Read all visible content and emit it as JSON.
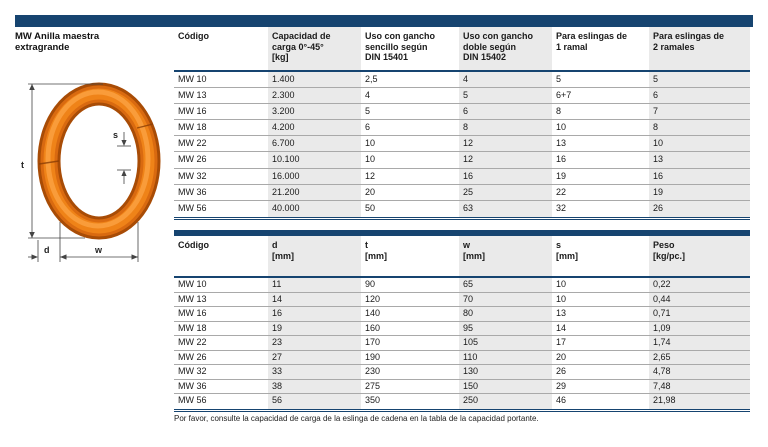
{
  "page": {
    "title_line1": "MW Anilla maestra",
    "title_line2": "extragrande",
    "footer_note": "Por favor, consulte la capacidad de carga de la eslinga de cadena en la tabla de la capacidad portante."
  },
  "colors": {
    "accent_navy": "#164470",
    "column_stripe": "#eaeaea",
    "ring_orange": "#e87a1e"
  },
  "diagram": {
    "labels": {
      "t": "t",
      "s": "s",
      "d": "d",
      "w": "w"
    }
  },
  "table1": {
    "headers": [
      {
        "l1": "Código"
      },
      {
        "l1": "Capacidad de",
        "l2": "carga 0°-45°",
        "l3": "[kg]"
      },
      {
        "l1": "Uso con gancho",
        "l2": "sencillo según",
        "l3": "DIN 15401"
      },
      {
        "l1": "Uso con gancho",
        "l2": "doble según",
        "l3": "DIN 15402"
      },
      {
        "l1": "Para eslingas de",
        "l2": "1 ramal"
      },
      {
        "l1": "Para eslingas de",
        "l2": "2 ramales"
      }
    ],
    "rows": [
      {
        "cells": [
          "MW 10",
          "1.400",
          "2,5",
          "4",
          "5",
          "5"
        ]
      },
      {
        "cells": [
          "MW 13",
          "2.300",
          "4",
          "5",
          "6+7",
          "6"
        ]
      },
      {
        "cells": [
          "MW 16",
          "3.200",
          "5",
          "6",
          "8",
          "7"
        ]
      },
      {
        "cells": [
          "MW 18",
          "4.200",
          "6",
          "8",
          "10",
          "8"
        ]
      },
      {
        "cells": [
          "MW 22",
          "6.700",
          "10",
          "12",
          "13",
          "10"
        ]
      },
      {
        "cells": [
          "MW 26",
          "10.100",
          "10",
          "12",
          "16",
          "13"
        ]
      },
      {
        "cells": [
          "MW 32",
          "16.000",
          "12",
          "16",
          "19",
          "16"
        ]
      },
      {
        "cells": [
          "MW 36",
          "21.200",
          "20",
          "25",
          "22",
          "19"
        ]
      },
      {
        "cells": [
          "MW 56",
          "40.000",
          "50",
          "63",
          "32",
          "26"
        ]
      }
    ]
  },
  "table2": {
    "headers": [
      {
        "l1": "Código"
      },
      {
        "l1": "d",
        "l2": "[mm]"
      },
      {
        "l1": "t",
        "l2": "[mm]"
      },
      {
        "l1": "w",
        "l2": "[mm]"
      },
      {
        "l1": "s",
        "l2": "[mm]"
      },
      {
        "l1": "Peso",
        "l2": "[kg/pc.]"
      }
    ],
    "rows": [
      {
        "cells": [
          "MW 10",
          "11",
          "90",
          "65",
          "10",
          "0,22"
        ]
      },
      {
        "cells": [
          "MW 13",
          "14",
          "120",
          "70",
          "10",
          "0,44"
        ]
      },
      {
        "cells": [
          "MW 16",
          "16",
          "140",
          "80",
          "13",
          "0,71"
        ]
      },
      {
        "cells": [
          "MW 18",
          "19",
          "160",
          "95",
          "14",
          "1,09"
        ]
      },
      {
        "cells": [
          "MW 22",
          "23",
          "170",
          "105",
          "17",
          "1,74"
        ]
      },
      {
        "cells": [
          "MW 26",
          "27",
          "190",
          "110",
          "20",
          "2,65"
        ]
      },
      {
        "cells": [
          "MW 32",
          "33",
          "230",
          "130",
          "26",
          "4,78"
        ]
      },
      {
        "cells": [
          "MW 36",
          "38",
          "275",
          "150",
          "29",
          "7,48"
        ]
      },
      {
        "cells": [
          "MW 56",
          "56",
          "350",
          "250",
          "46",
          "21,98"
        ]
      }
    ]
  }
}
